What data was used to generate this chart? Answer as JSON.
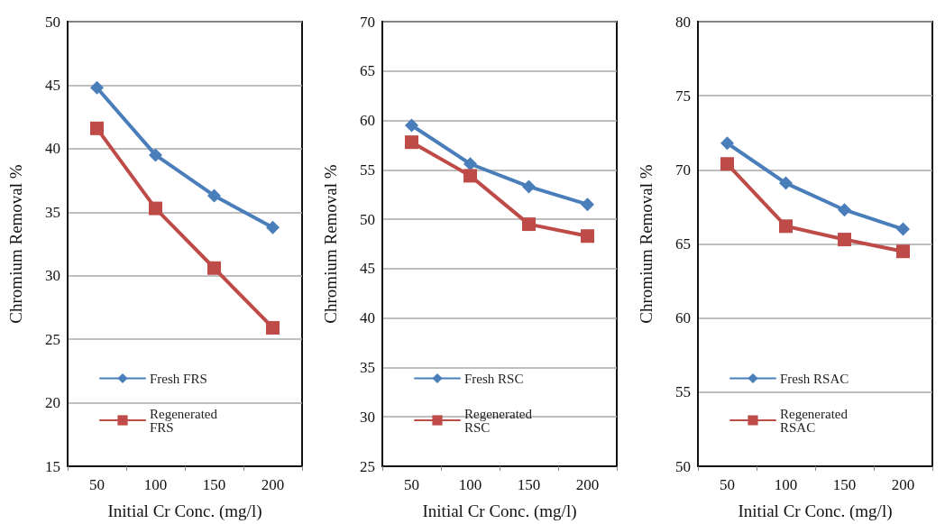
{
  "chart_data": [
    {
      "type": "line",
      "xlabel": "Initial Cr Conc. (mg/l)",
      "ylabel": "Chromium Removal %",
      "categories": [
        "50",
        "100",
        "150",
        "200"
      ],
      "ylim": [
        15,
        50
      ],
      "yticks": [
        15,
        20,
        25,
        30,
        35,
        40,
        45,
        50
      ],
      "grid": "y",
      "legend": "bottom left",
      "series": [
        {
          "name": "Fresh FRS",
          "color": "#4a7ebb",
          "marker": "diamond",
          "values": [
            44.8,
            39.5,
            36.3,
            33.8
          ]
        },
        {
          "name": "Regenerated FRS",
          "color": "#be4b48",
          "marker": "square",
          "values": [
            41.6,
            35.3,
            30.6,
            25.9
          ]
        }
      ]
    },
    {
      "type": "line",
      "xlabel": "Initial Cr Conc. (mg/l)",
      "ylabel": "Chromium Removal %",
      "categories": [
        "50",
        "100",
        "150",
        "200"
      ],
      "ylim": [
        25,
        70
      ],
      "yticks": [
        25,
        30,
        35,
        40,
        45,
        50,
        55,
        60,
        65,
        70
      ],
      "grid": "y",
      "legend": "bottom left",
      "series": [
        {
          "name": "Fresh RSC",
          "color": "#4a7ebb",
          "marker": "diamond",
          "values": [
            59.5,
            55.6,
            53.3,
            51.5
          ]
        },
        {
          "name": "Regenerated RSC",
          "color": "#be4b48",
          "marker": "square",
          "values": [
            57.8,
            54.4,
            49.5,
            48.3
          ]
        }
      ]
    },
    {
      "type": "line",
      "xlabel": "Initial Cr Conc. (mg/l)",
      "ylabel": "Chromium Removal %",
      "categories": [
        "50",
        "100",
        "150",
        "200"
      ],
      "ylim": [
        50,
        80
      ],
      "yticks": [
        50,
        55,
        60,
        65,
        70,
        75,
        80
      ],
      "grid": "y",
      "legend": "bottom left",
      "series": [
        {
          "name": "Fresh RSAC",
          "color": "#4a7ebb",
          "marker": "diamond",
          "values": [
            71.8,
            69.1,
            67.3,
            66.0
          ]
        },
        {
          "name": "Regenerated RSAC",
          "color": "#be4b48",
          "marker": "square",
          "values": [
            70.4,
            66.2,
            65.3,
            64.5
          ]
        }
      ]
    }
  ]
}
